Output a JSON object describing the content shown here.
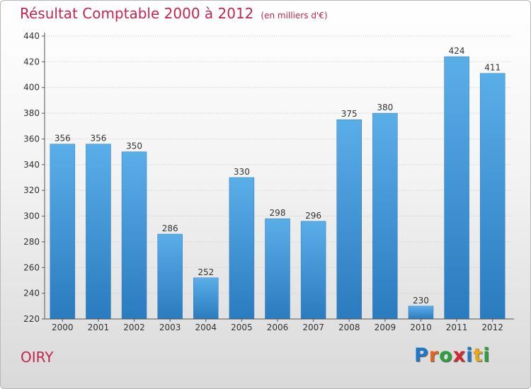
{
  "chart_data": {
    "type": "bar",
    "title": "Résultat Comptable 2000 à 2012",
    "subtitle": "(en milliers d'€)",
    "categories": [
      "2000",
      "2001",
      "2002",
      "2003",
      "2004",
      "2005",
      "2006",
      "2007",
      "2008",
      "2009",
      "2010",
      "2011",
      "2012"
    ],
    "values": [
      356,
      356,
      350,
      286,
      252,
      330,
      298,
      296,
      375,
      380,
      230,
      424,
      411
    ],
    "xlabel": "",
    "ylabel": "",
    "ylim": [
      220,
      440
    ],
    "yticks": [
      220,
      240,
      260,
      280,
      300,
      320,
      340,
      360,
      380,
      400,
      420,
      440
    ],
    "grid": true,
    "bar_color": "#3d94d6"
  },
  "location": {
    "name": "OIRY"
  },
  "logo": {
    "letters": [
      "P",
      "r",
      "o",
      "x",
      "i",
      "t",
      "i"
    ],
    "colors": [
      "#1e78c8",
      "#e8641e",
      "#2aa13c",
      "#d6262f",
      "#1e78c8",
      "#e8a81e",
      "#2aa13c"
    ]
  }
}
